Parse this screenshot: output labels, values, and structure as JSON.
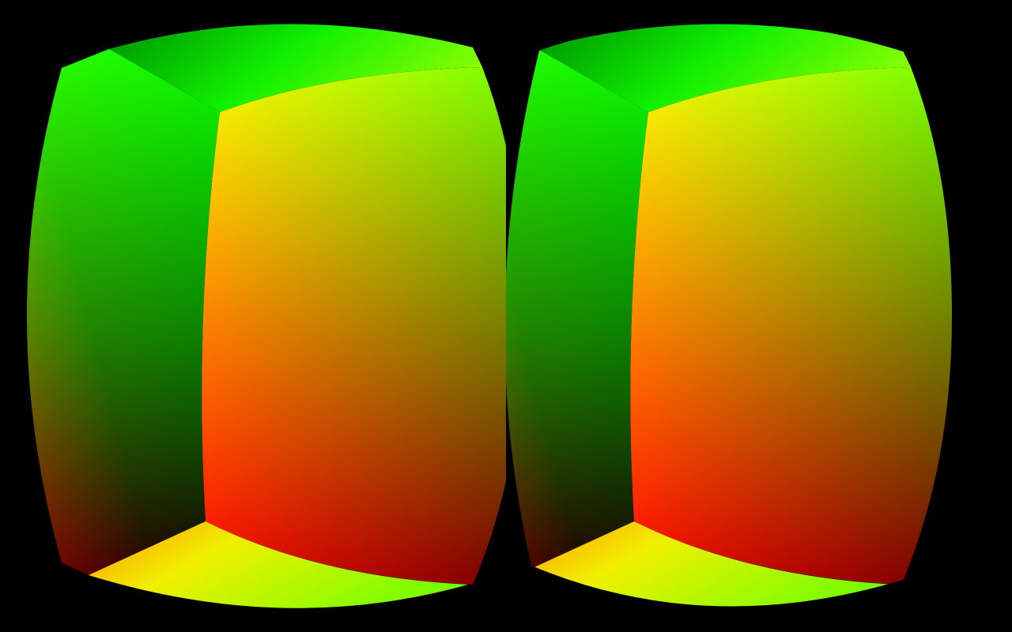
{
  "scene": {
    "view": "stereo",
    "eyes": [
      "left",
      "right"
    ],
    "background_color": "#000000",
    "object": "cube",
    "face_colors": {
      "front": {
        "top_left": "#ffff00",
        "top_right": "#80ff00",
        "bottom_left": "#ff0000",
        "bottom_right": "#600000"
      },
      "left": {
        "top": "#40ff00",
        "inner_top": "#00ff00",
        "inner_bottom": "#000000",
        "bottom": "#800000"
      },
      "top": {
        "left": "#00a000",
        "right": "#80ff00"
      },
      "bottom": {
        "left": "#ffa000",
        "inner": "#ffff00",
        "right": "#80ff00"
      }
    }
  }
}
